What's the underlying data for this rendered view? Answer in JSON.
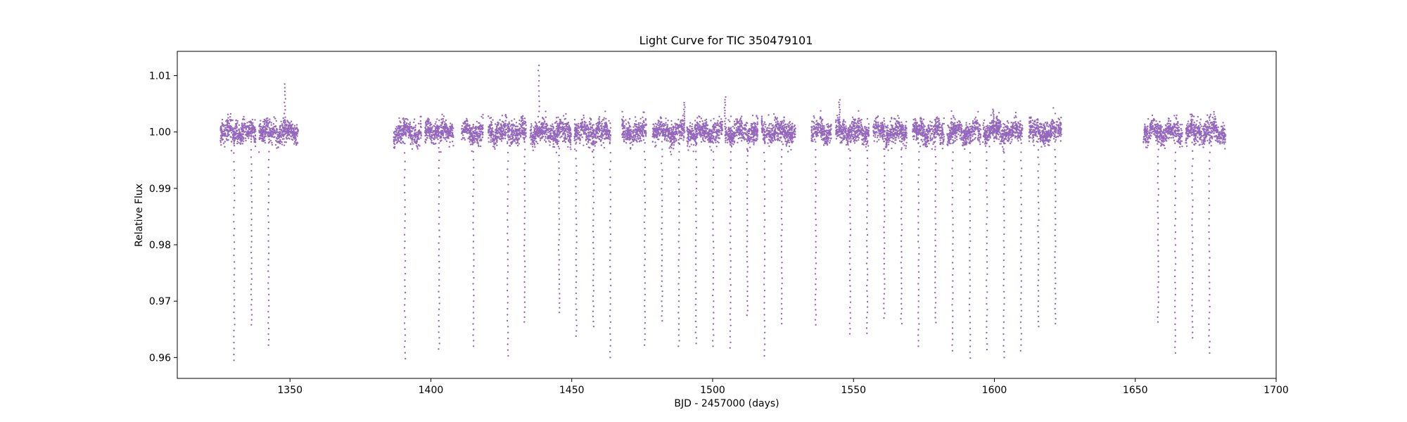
{
  "chart_data": {
    "type": "scatter",
    "title": "Light Curve for TIC 350479101",
    "xlabel": "BJD - 2457000 (days)",
    "ylabel": "Relative Flux",
    "xlim": [
      1310,
      1700
    ],
    "ylim": [
      0.9563,
      1.0143
    ],
    "x_ticks": [
      1350,
      1400,
      1450,
      1500,
      1550,
      1600,
      1650,
      1700
    ],
    "y_ticks": [
      0.96,
      0.97,
      0.98,
      0.99,
      1.0,
      1.01
    ],
    "x_tick_labels": [
      "1350",
      "1400",
      "1450",
      "1500",
      "1550",
      "1600",
      "1650",
      "1700"
    ],
    "y_tick_labels": [
      "0.96",
      "0.97",
      "0.98",
      "0.99",
      "1.00",
      "1.01"
    ],
    "grid": false,
    "marker_color": "#9467bd",
    "baseline_flux": 1.0,
    "baseline_scatter": 0.0018,
    "segments": [
      [
        1325.3,
        1337.8
      ],
      [
        1339.0,
        1352.9
      ],
      [
        1386.7,
        1396.6
      ],
      [
        1397.9,
        1408.0
      ],
      [
        1410.9,
        1418.5
      ],
      [
        1420.4,
        1433.8
      ],
      [
        1435.2,
        1449.8
      ],
      [
        1450.9,
        1463.9
      ],
      [
        1467.8,
        1476.5
      ],
      [
        1478.6,
        1490.0
      ],
      [
        1490.9,
        1503.5
      ],
      [
        1504.4,
        1516.1
      ],
      [
        1517.4,
        1529.4
      ],
      [
        1535.0,
        1542.1
      ],
      [
        1543.7,
        1555.5
      ],
      [
        1557.0,
        1568.9
      ],
      [
        1571.0,
        1582.3
      ],
      [
        1583.2,
        1595.2
      ],
      [
        1595.9,
        1601.8
      ],
      [
        1600.6,
        1610.0
      ],
      [
        1612.2,
        1623.8
      ],
      [
        1652.9,
        1666.7
      ],
      [
        1667.9,
        1682.1
      ]
    ],
    "transit_times": [
      1330.2,
      1336.3,
      1342.4,
      1390.8,
      1402.9,
      1415.1,
      1427.3,
      1433.3,
      1445.5,
      1451.6,
      1457.7,
      1463.7,
      1475.9,
      1482.0,
      1488.0,
      1494.1,
      1500.2,
      1506.3,
      1512.3,
      1518.4,
      1524.5,
      1530.5,
      1536.6,
      1542.7,
      1548.8,
      1554.8,
      1560.9,
      1567.0,
      1573.1,
      1579.1,
      1585.2,
      1591.3,
      1597.3,
      1603.4,
      1609.5,
      1615.6,
      1621.6,
      1658.1,
      1664.2,
      1670.3,
      1676.3
    ],
    "transit_depths": [
      0.9595,
      0.9658,
      0.9622,
      0.9598,
      0.9615,
      0.962,
      0.9603,
      0.9663,
      0.968,
      0.9638,
      0.9655,
      0.96,
      0.9622,
      0.9665,
      0.962,
      0.9625,
      0.962,
      0.9617,
      0.9675,
      0.9603,
      0.966,
      0.966,
      0.9658,
      0.9644,
      0.9642,
      0.9643,
      0.967,
      0.966,
      0.962,
      0.9662,
      0.9612,
      0.9599,
      0.9614,
      0.96,
      0.9612,
      0.9655,
      0.966,
      0.9663,
      0.9608,
      0.9635,
      0.9608
    ],
    "flares": [
      {
        "x": 1348.2,
        "peak": 1.0085
      },
      {
        "x": 1438.3,
        "peak": 1.0118
      },
      {
        "x": 1490.0,
        "peak": 1.0052
      },
      {
        "x": 1504.4,
        "peak": 1.0062
      },
      {
        "x": 1545.0,
        "peak": 1.0057
      },
      {
        "x": 1599.7,
        "peak": 1.004
      }
    ]
  }
}
